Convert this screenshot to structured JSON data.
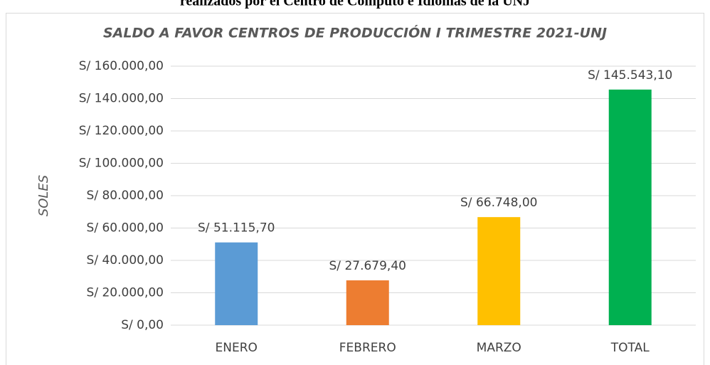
{
  "caption": "realizados por el Centro de Cómputo e Idiomas de la UNJ",
  "chart_data": {
    "type": "bar",
    "title": "SALDO A FAVOR CENTROS DE PRODUCCIÓN I TRIMESTRE 2021-UNJ",
    "y_label": "SOLES",
    "categories": [
      "ENERO",
      "FEBRERO",
      "MARZO",
      "TOTAL"
    ],
    "values": [
      51115.7,
      27679.4,
      66748,
      145543.1
    ],
    "value_labels": [
      "S/ 51.115,70",
      "S/ 27.679,40",
      "S/ 66.748,00",
      "S/ 145.543,10"
    ],
    "colors": [
      "#5b9bd5",
      "#ed7d31",
      "#ffc000",
      "#00b050"
    ],
    "ylim": [
      0,
      160000
    ],
    "yticks": [
      {
        "value": 0,
        "label": "S/ 0,00"
      },
      {
        "value": 20000,
        "label": "S/ 20.000,00"
      },
      {
        "value": 40000,
        "label": "S/ 40.000,00"
      },
      {
        "value": 60000,
        "label": "S/ 60.000,00"
      },
      {
        "value": 80000,
        "label": "S/ 80.000,00"
      },
      {
        "value": 100000,
        "label": "S/ 100.000,00"
      },
      {
        "value": 120000,
        "label": "S/ 120.000,00"
      },
      {
        "value": 140000,
        "label": "S/ 140.000,00"
      },
      {
        "value": 160000,
        "label": "S/ 160.000,00"
      }
    ],
    "grid": true
  }
}
